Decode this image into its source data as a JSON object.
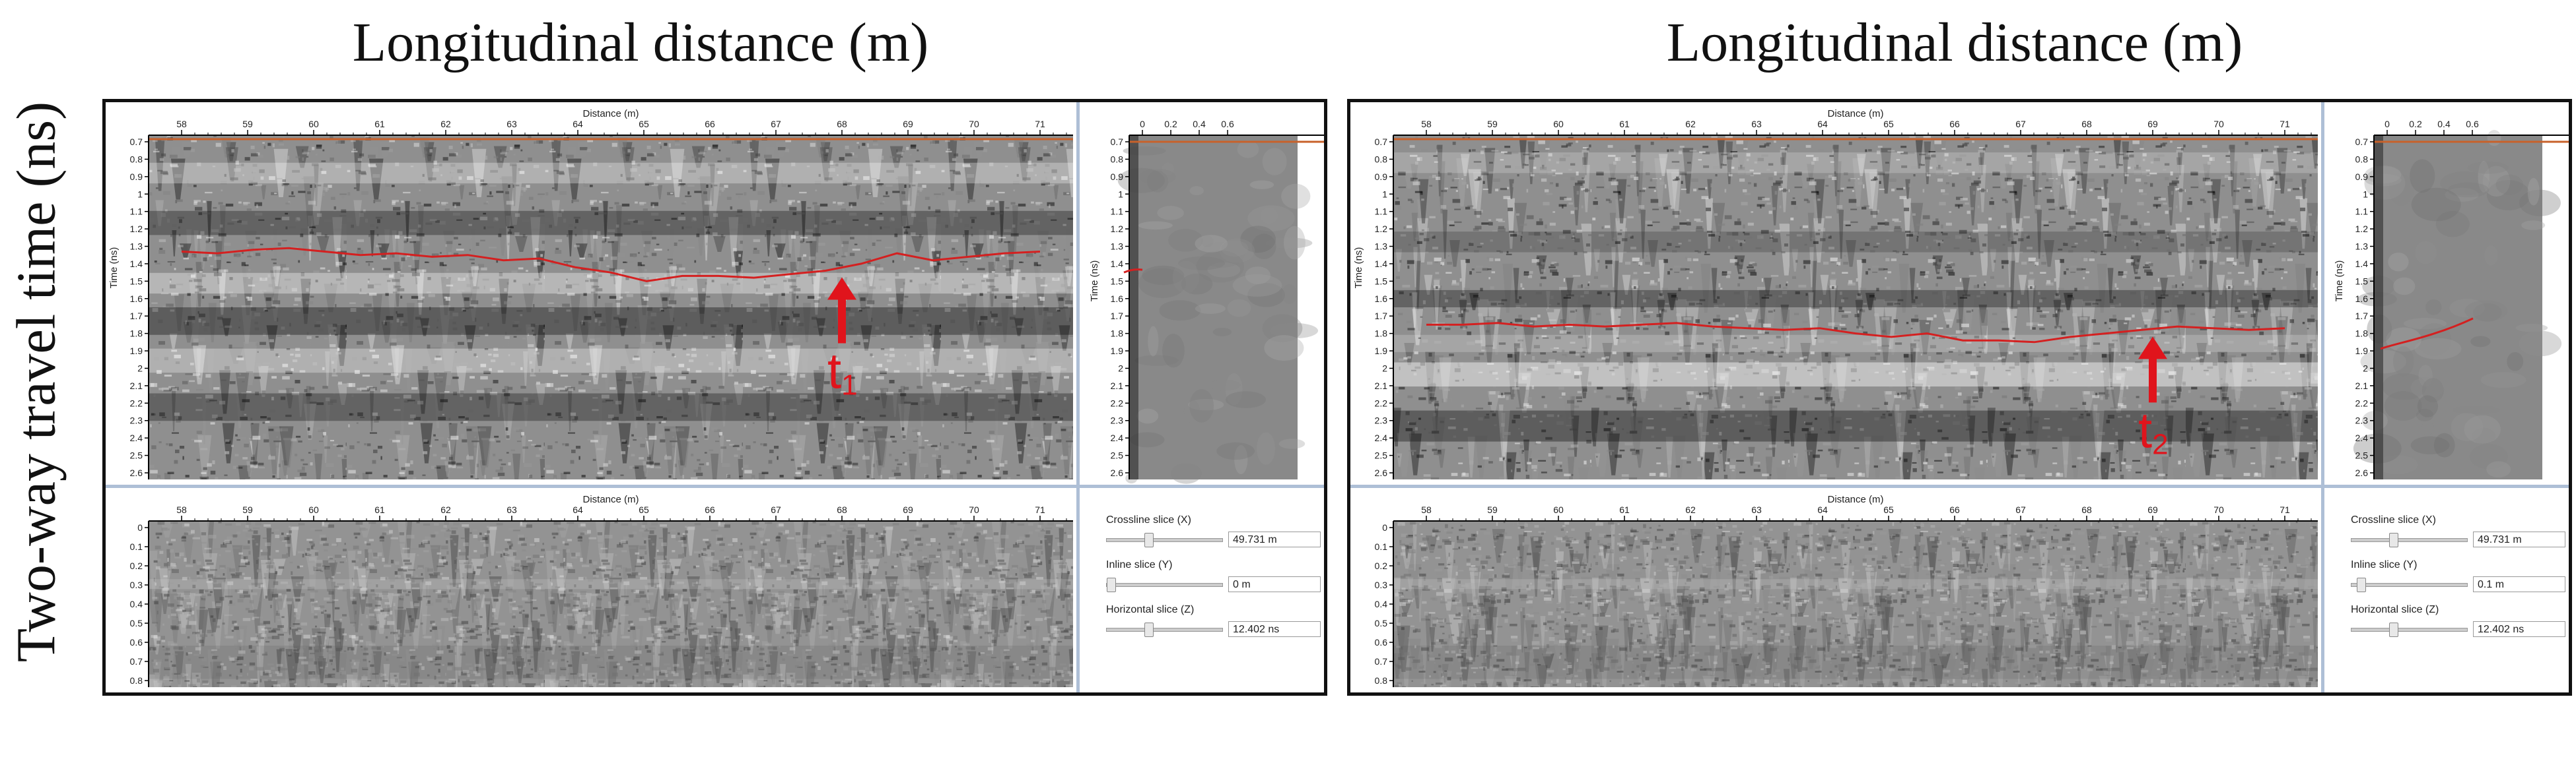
{
  "y_axis_label": "Two-way travel time (ns)",
  "panels": [
    {
      "title": "Longitudinal distance (m)",
      "main": {
        "xlabel": "Distance (m)",
        "ylabel": "Time (ns)",
        "x_ticks": [
          "58",
          "59",
          "60",
          "61",
          "62",
          "63",
          "64",
          "65",
          "66",
          "67",
          "68",
          "69",
          "70",
          "71"
        ],
        "y_ticks": [
          "0.7",
          "0.8",
          "0.9",
          "1",
          "1.1",
          "1.2",
          "1.3",
          "1.4",
          "1.5",
          "1.6",
          "1.7",
          "1.8",
          "1.9",
          "2",
          "2.1",
          "2.2",
          "2.3",
          "2.4",
          "2.5",
          "2.6"
        ],
        "pick_times": [
          1.33,
          1.34,
          1.32,
          1.31,
          1.33,
          1.35,
          1.34,
          1.36,
          1.35,
          1.38,
          1.37,
          1.42,
          1.45,
          1.5,
          1.47,
          1.47,
          1.48,
          1.46,
          1.44,
          1.4,
          1.34,
          1.38,
          1.36,
          1.34,
          1.33
        ],
        "arrow_x": 68,
        "arrow_label": "t",
        "arrow_subscript": "1",
        "pick_color": "#d42020",
        "arrow_color": "#e0141c"
      },
      "side": {
        "x_ticks": [
          "0",
          "0.2",
          "0.4",
          "0.6"
        ],
        "y_ticks": [
          "0.7",
          "0.8",
          "0.9",
          "1",
          "1.1",
          "1.2",
          "1.3",
          "1.4",
          "1.5",
          "1.6",
          "1.7",
          "1.8",
          "1.9",
          "2",
          "2.1",
          "2.2",
          "2.3",
          "2.4",
          "2.5",
          "2.6"
        ],
        "ylabel": "Time (ns)",
        "marker_time": 1.45
      },
      "bottom": {
        "xlabel": "Distance (m)",
        "x_ticks": [
          "58",
          "59",
          "60",
          "61",
          "62",
          "63",
          "64",
          "65",
          "66",
          "67",
          "68",
          "69",
          "70",
          "71"
        ],
        "y_ticks": [
          "0",
          "0.1",
          "0.2",
          "0.3",
          "0.4",
          "0.5",
          "0.6",
          "0.7",
          "0.8"
        ]
      },
      "controls": {
        "crossline_label": "Crossline slice (X)",
        "crossline_value": "49.731 m",
        "crossline_level": 0.35,
        "inline_label": "Inline slice (Y)",
        "inline_value": "0 m",
        "inline_level": 0.0,
        "horizontal_label": "Horizontal slice (Z)",
        "horizontal_value": "12.402 ns",
        "horizontal_level": 0.35
      }
    },
    {
      "title": "Longitudinal distance (m)",
      "main": {
        "xlabel": "Distance (m)",
        "ylabel": "Time (ns)",
        "x_ticks": [
          "58",
          "59",
          "60",
          "61",
          "62",
          "63",
          "64",
          "65",
          "66",
          "67",
          "68",
          "69",
          "70",
          "71"
        ],
        "y_ticks": [
          "0.7",
          "0.8",
          "0.9",
          "1",
          "1.1",
          "1.2",
          "1.3",
          "1.4",
          "1.5",
          "1.6",
          "1.7",
          "1.8",
          "1.9",
          "2",
          "2.1",
          "2.2",
          "2.3",
          "2.4",
          "2.5",
          "2.6"
        ],
        "pick_times": [
          1.75,
          1.75,
          1.74,
          1.76,
          1.75,
          1.76,
          1.75,
          1.74,
          1.76,
          1.77,
          1.78,
          1.77,
          1.8,
          1.82,
          1.8,
          1.84,
          1.84,
          1.85,
          1.82,
          1.8,
          1.78,
          1.76,
          1.77,
          1.78,
          1.77
        ],
        "arrow_x": 69,
        "arrow_label": "t",
        "arrow_subscript": "2",
        "pick_color": "#d42020",
        "arrow_color": "#e0141c"
      },
      "side": {
        "x_ticks": [
          "0",
          "0.2",
          "0.4",
          "0.6"
        ],
        "y_ticks": [
          "0.7",
          "0.8",
          "0.9",
          "1",
          "1.1",
          "1.2",
          "1.3",
          "1.4",
          "1.5",
          "1.6",
          "1.7",
          "1.8",
          "1.9",
          "2",
          "2.1",
          "2.2",
          "2.3",
          "2.4",
          "2.5",
          "2.6"
        ],
        "ylabel": "Time (ns)",
        "marker_time": 1.85
      },
      "bottom": {
        "xlabel": "Distance (m)",
        "x_ticks": [
          "58",
          "59",
          "60",
          "61",
          "62",
          "63",
          "64",
          "65",
          "66",
          "67",
          "68",
          "69",
          "70",
          "71"
        ],
        "y_ticks": [
          "0",
          "0.1",
          "0.2",
          "0.3",
          "0.4",
          "0.5",
          "0.6",
          "0.7",
          "0.8"
        ]
      },
      "controls": {
        "crossline_label": "Crossline slice (X)",
        "crossline_value": "49.731 m",
        "crossline_level": 0.35,
        "inline_label": "Inline slice (Y)",
        "inline_value": "0.1 m",
        "inline_level": 0.05,
        "horizontal_label": "Horizontal slice (Z)",
        "horizontal_value": "12.402 ns",
        "horizontal_level": 0.35
      }
    }
  ]
}
